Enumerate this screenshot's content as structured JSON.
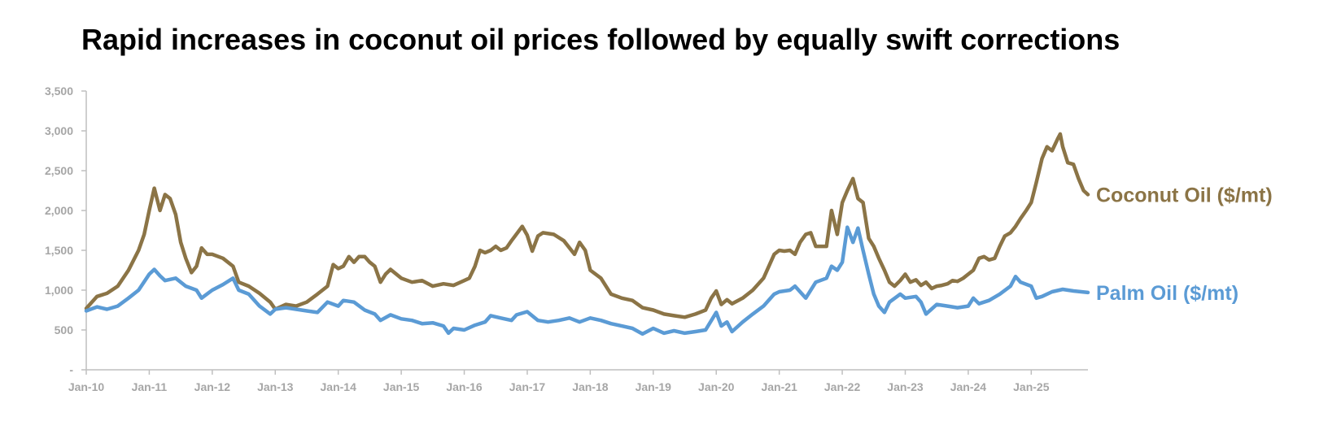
{
  "title": "Rapid increases in coconut oil prices followed by equally swift corrections",
  "chart_data": {
    "type": "line",
    "title": "Rapid increases in coconut oil prices followed by equally swift corrections",
    "xlabel": "",
    "ylabel": "",
    "ylim": [
      0,
      3500
    ],
    "yticks": [
      {
        "value": 0,
        "label": "-"
      },
      {
        "value": 500,
        "label": "500"
      },
      {
        "value": 1000,
        "label": "1,000"
      },
      {
        "value": 1500,
        "label": "1,500"
      },
      {
        "value": 2000,
        "label": "2,000"
      },
      {
        "value": 2500,
        "label": "2,500"
      },
      {
        "value": 3000,
        "label": "3,000"
      },
      {
        "value": 3500,
        "label": "3,500"
      }
    ],
    "xlim": [
      2010.0,
      2025.9
    ],
    "xticks": [
      {
        "value": 2010,
        "label": "Jan-10"
      },
      {
        "value": 2011,
        "label": "Jan-11"
      },
      {
        "value": 2012,
        "label": "Jan-12"
      },
      {
        "value": 2013,
        "label": "Jan-13"
      },
      {
        "value": 2014,
        "label": "Jan-14"
      },
      {
        "value": 2015,
        "label": "Jan-15"
      },
      {
        "value": 2016,
        "label": "Jan-16"
      },
      {
        "value": 2017,
        "label": "Jan-17"
      },
      {
        "value": 2018,
        "label": "Jan-18"
      },
      {
        "value": 2019,
        "label": "Jan-19"
      },
      {
        "value": 2020,
        "label": "Jan-20"
      },
      {
        "value": 2021,
        "label": "Jan-21"
      },
      {
        "value": 2022,
        "label": "Jan-22"
      },
      {
        "value": 2023,
        "label": "Jan-23"
      },
      {
        "value": 2024,
        "label": "Jan-24"
      },
      {
        "value": 2025,
        "label": "Jan-25"
      }
    ],
    "grid": false,
    "legend": "inline labels at right end of lines",
    "series": [
      {
        "name": "Coconut Oil ($/mt)",
        "color": "#8b7446",
        "points": [
          [
            2010.0,
            770
          ],
          [
            2010.17,
            920
          ],
          [
            2010.33,
            960
          ],
          [
            2010.5,
            1050
          ],
          [
            2010.67,
            1250
          ],
          [
            2010.83,
            1500
          ],
          [
            2010.92,
            1700
          ],
          [
            2011.0,
            2000
          ],
          [
            2011.08,
            2280
          ],
          [
            2011.17,
            2000
          ],
          [
            2011.25,
            2200
          ],
          [
            2011.33,
            2150
          ],
          [
            2011.42,
            1950
          ],
          [
            2011.5,
            1600
          ],
          [
            2011.58,
            1400
          ],
          [
            2011.67,
            1220
          ],
          [
            2011.75,
            1300
          ],
          [
            2011.83,
            1530
          ],
          [
            2011.92,
            1450
          ],
          [
            2012.0,
            1450
          ],
          [
            2012.17,
            1400
          ],
          [
            2012.33,
            1300
          ],
          [
            2012.42,
            1100
          ],
          [
            2012.58,
            1050
          ],
          [
            2012.75,
            960
          ],
          [
            2012.92,
            850
          ],
          [
            2013.0,
            760
          ],
          [
            2013.17,
            820
          ],
          [
            2013.33,
            800
          ],
          [
            2013.5,
            850
          ],
          [
            2013.67,
            950
          ],
          [
            2013.83,
            1050
          ],
          [
            2013.92,
            1320
          ],
          [
            2014.0,
            1270
          ],
          [
            2014.08,
            1300
          ],
          [
            2014.17,
            1420
          ],
          [
            2014.25,
            1350
          ],
          [
            2014.33,
            1420
          ],
          [
            2014.42,
            1420
          ],
          [
            2014.5,
            1350
          ],
          [
            2014.58,
            1300
          ],
          [
            2014.67,
            1100
          ],
          [
            2014.75,
            1200
          ],
          [
            2014.83,
            1260
          ],
          [
            2015.0,
            1150
          ],
          [
            2015.17,
            1100
          ],
          [
            2015.33,
            1120
          ],
          [
            2015.5,
            1050
          ],
          [
            2015.67,
            1080
          ],
          [
            2015.83,
            1060
          ],
          [
            2016.0,
            1120
          ],
          [
            2016.08,
            1150
          ],
          [
            2016.17,
            1300
          ],
          [
            2016.25,
            1500
          ],
          [
            2016.33,
            1470
          ],
          [
            2016.42,
            1500
          ],
          [
            2016.5,
            1550
          ],
          [
            2016.58,
            1500
          ],
          [
            2016.67,
            1530
          ],
          [
            2016.75,
            1620
          ],
          [
            2016.92,
            1800
          ],
          [
            2017.0,
            1690
          ],
          [
            2017.08,
            1490
          ],
          [
            2017.17,
            1680
          ],
          [
            2017.25,
            1720
          ],
          [
            2017.42,
            1700
          ],
          [
            2017.58,
            1620
          ],
          [
            2017.75,
            1450
          ],
          [
            2017.83,
            1600
          ],
          [
            2017.92,
            1500
          ],
          [
            2018.0,
            1250
          ],
          [
            2018.17,
            1150
          ],
          [
            2018.33,
            950
          ],
          [
            2018.5,
            900
          ],
          [
            2018.67,
            870
          ],
          [
            2018.83,
            780
          ],
          [
            2019.0,
            750
          ],
          [
            2019.17,
            700
          ],
          [
            2019.33,
            680
          ],
          [
            2019.5,
            660
          ],
          [
            2019.67,
            700
          ],
          [
            2019.83,
            750
          ],
          [
            2019.92,
            900
          ],
          [
            2020.0,
            990
          ],
          [
            2020.08,
            820
          ],
          [
            2020.17,
            880
          ],
          [
            2020.25,
            830
          ],
          [
            2020.42,
            900
          ],
          [
            2020.58,
            1000
          ],
          [
            2020.75,
            1150
          ],
          [
            2020.92,
            1450
          ],
          [
            2021.0,
            1500
          ],
          [
            2021.08,
            1490
          ],
          [
            2021.17,
            1500
          ],
          [
            2021.25,
            1450
          ],
          [
            2021.33,
            1600
          ],
          [
            2021.42,
            1700
          ],
          [
            2021.5,
            1720
          ],
          [
            2021.58,
            1550
          ],
          [
            2021.67,
            1550
          ],
          [
            2021.75,
            1550
          ],
          [
            2021.83,
            2000
          ],
          [
            2021.92,
            1700
          ],
          [
            2022.0,
            2100
          ],
          [
            2022.08,
            2250
          ],
          [
            2022.17,
            2400
          ],
          [
            2022.25,
            2150
          ],
          [
            2022.33,
            2100
          ],
          [
            2022.42,
            1650
          ],
          [
            2022.5,
            1550
          ],
          [
            2022.58,
            1400
          ],
          [
            2022.67,
            1250
          ],
          [
            2022.75,
            1100
          ],
          [
            2022.83,
            1050
          ],
          [
            2022.92,
            1120
          ],
          [
            2023.0,
            1200
          ],
          [
            2023.08,
            1100
          ],
          [
            2023.17,
            1130
          ],
          [
            2023.25,
            1060
          ],
          [
            2023.33,
            1100
          ],
          [
            2023.42,
            1020
          ],
          [
            2023.5,
            1050
          ],
          [
            2023.58,
            1060
          ],
          [
            2023.67,
            1080
          ],
          [
            2023.75,
            1120
          ],
          [
            2023.83,
            1110
          ],
          [
            2023.92,
            1150
          ],
          [
            2024.0,
            1200
          ],
          [
            2024.08,
            1250
          ],
          [
            2024.17,
            1400
          ],
          [
            2024.25,
            1420
          ],
          [
            2024.33,
            1380
          ],
          [
            2024.42,
            1400
          ],
          [
            2024.5,
            1550
          ],
          [
            2024.58,
            1680
          ],
          [
            2024.67,
            1720
          ],
          [
            2024.75,
            1800
          ],
          [
            2024.83,
            1900
          ],
          [
            2024.92,
            2000
          ],
          [
            2025.0,
            2100
          ],
          [
            2025.08,
            2350
          ],
          [
            2025.17,
            2650
          ],
          [
            2025.25,
            2800
          ],
          [
            2025.33,
            2750
          ],
          [
            2025.42,
            2900
          ],
          [
            2025.46,
            2960
          ],
          [
            2025.5,
            2800
          ],
          [
            2025.58,
            2600
          ],
          [
            2025.67,
            2580
          ],
          [
            2025.75,
            2400
          ],
          [
            2025.83,
            2250
          ],
          [
            2025.9,
            2200
          ]
        ]
      },
      {
        "name": "Palm Oil ($/mt)",
        "color": "#5b9bd5",
        "points": [
          [
            2010.0,
            740
          ],
          [
            2010.17,
            790
          ],
          [
            2010.33,
            760
          ],
          [
            2010.5,
            800
          ],
          [
            2010.67,
            900
          ],
          [
            2010.83,
            1000
          ],
          [
            2011.0,
            1200
          ],
          [
            2011.08,
            1260
          ],
          [
            2011.17,
            1180
          ],
          [
            2011.25,
            1120
          ],
          [
            2011.42,
            1150
          ],
          [
            2011.58,
            1050
          ],
          [
            2011.75,
            1000
          ],
          [
            2011.83,
            900
          ],
          [
            2012.0,
            1000
          ],
          [
            2012.17,
            1070
          ],
          [
            2012.33,
            1150
          ],
          [
            2012.42,
            1000
          ],
          [
            2012.58,
            950
          ],
          [
            2012.75,
            800
          ],
          [
            2012.92,
            700
          ],
          [
            2013.0,
            760
          ],
          [
            2013.17,
            780
          ],
          [
            2013.33,
            760
          ],
          [
            2013.5,
            740
          ],
          [
            2013.67,
            720
          ],
          [
            2013.83,
            850
          ],
          [
            2014.0,
            800
          ],
          [
            2014.08,
            870
          ],
          [
            2014.25,
            850
          ],
          [
            2014.42,
            750
          ],
          [
            2014.58,
            700
          ],
          [
            2014.67,
            620
          ],
          [
            2014.83,
            690
          ],
          [
            2015.0,
            640
          ],
          [
            2015.17,
            620
          ],
          [
            2015.33,
            580
          ],
          [
            2015.5,
            590
          ],
          [
            2015.67,
            550
          ],
          [
            2015.75,
            460
          ],
          [
            2015.83,
            520
          ],
          [
            2016.0,
            500
          ],
          [
            2016.17,
            560
          ],
          [
            2016.33,
            600
          ],
          [
            2016.42,
            680
          ],
          [
            2016.58,
            650
          ],
          [
            2016.75,
            620
          ],
          [
            2016.83,
            690
          ],
          [
            2017.0,
            730
          ],
          [
            2017.17,
            620
          ],
          [
            2017.33,
            600
          ],
          [
            2017.5,
            620
          ],
          [
            2017.67,
            650
          ],
          [
            2017.83,
            600
          ],
          [
            2018.0,
            650
          ],
          [
            2018.17,
            620
          ],
          [
            2018.33,
            580
          ],
          [
            2018.5,
            550
          ],
          [
            2018.67,
            520
          ],
          [
            2018.83,
            450
          ],
          [
            2019.0,
            520
          ],
          [
            2019.17,
            460
          ],
          [
            2019.33,
            490
          ],
          [
            2019.5,
            460
          ],
          [
            2019.67,
            480
          ],
          [
            2019.83,
            500
          ],
          [
            2020.0,
            720
          ],
          [
            2020.08,
            550
          ],
          [
            2020.17,
            600
          ],
          [
            2020.25,
            480
          ],
          [
            2020.42,
            600
          ],
          [
            2020.58,
            700
          ],
          [
            2020.75,
            800
          ],
          [
            2020.92,
            950
          ],
          [
            2021.0,
            980
          ],
          [
            2021.17,
            1000
          ],
          [
            2021.25,
            1050
          ],
          [
            2021.42,
            900
          ],
          [
            2021.58,
            1100
          ],
          [
            2021.75,
            1150
          ],
          [
            2021.83,
            1300
          ],
          [
            2021.92,
            1250
          ],
          [
            2022.0,
            1350
          ],
          [
            2022.08,
            1790
          ],
          [
            2022.17,
            1600
          ],
          [
            2022.25,
            1780
          ],
          [
            2022.33,
            1500
          ],
          [
            2022.42,
            1200
          ],
          [
            2022.5,
            950
          ],
          [
            2022.58,
            800
          ],
          [
            2022.67,
            720
          ],
          [
            2022.75,
            850
          ],
          [
            2022.92,
            950
          ],
          [
            2023.0,
            900
          ],
          [
            2023.17,
            920
          ],
          [
            2023.25,
            850
          ],
          [
            2023.33,
            700
          ],
          [
            2023.5,
            820
          ],
          [
            2023.67,
            800
          ],
          [
            2023.83,
            780
          ],
          [
            2024.0,
            800
          ],
          [
            2024.08,
            900
          ],
          [
            2024.17,
            830
          ],
          [
            2024.33,
            870
          ],
          [
            2024.5,
            950
          ],
          [
            2024.67,
            1050
          ],
          [
            2024.75,
            1170
          ],
          [
            2024.83,
            1100
          ],
          [
            2025.0,
            1050
          ],
          [
            2025.08,
            900
          ],
          [
            2025.17,
            920
          ],
          [
            2025.33,
            980
          ],
          [
            2025.5,
            1010
          ],
          [
            2025.67,
            990
          ],
          [
            2025.9,
            970
          ]
        ]
      }
    ]
  }
}
